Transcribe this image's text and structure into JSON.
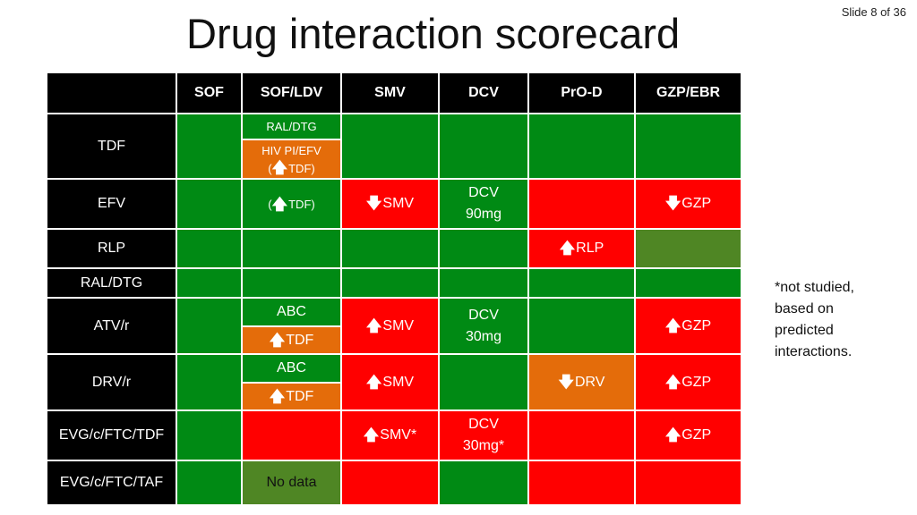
{
  "slide": {
    "number_label": "Slide 8 of 36"
  },
  "title": "Drug interaction scorecard",
  "footnote": "*not studied,\nbased on\npredicted\ninteractions.",
  "colors": {
    "green": "#008a14",
    "red": "#ff0000",
    "orange": "#e46c0a",
    "dark_green": "#4f8624",
    "black": "#000000"
  },
  "arrows": {
    "up": "🡅",
    "down": "🡇"
  },
  "table": {
    "columns": [
      "SOF",
      "SOF/LDV",
      "SMV",
      "DCV",
      "PrO-D",
      "GZP/EBR"
    ],
    "rows": [
      "TDF",
      "EFV",
      "RLP",
      "RAL/DTG",
      "ATV/r",
      "DRV/r",
      "EVG/c/FTC/TDF",
      "EVG/c/FTC/TAF"
    ],
    "cells": {
      "tdf_ldv_a": "RAL/DTG",
      "tdf_ldv_b": "HIV PI/EFV\n(",
      "tdf_ldv_b_tail": "TDF)",
      "efv_ldv_pre": "(",
      "efv_ldv": "TDF)",
      "efv_smv": "SMV",
      "efv_dcv": "DCV\n90mg",
      "efv_gzp": "GZP",
      "rlp_prod": "RLP",
      "atv_ldv_a": "ABC",
      "atv_ldv_b": "TDF",
      "atv_smv": "SMV",
      "atv_dcv": "DCV\n30mg",
      "atv_gzp": "GZP",
      "drv_ldv_a": "ABC",
      "drv_ldv_b": "TDF",
      "drv_smv": "SMV",
      "drv_prod": "DRV",
      "drv_gzp": "GZP",
      "evgtdf_smv": "SMV*",
      "evgtdf_dcv": "DCV\n30mg*",
      "evgtdf_gzp": "GZP",
      "evgtaf_ldv": "No data"
    }
  }
}
